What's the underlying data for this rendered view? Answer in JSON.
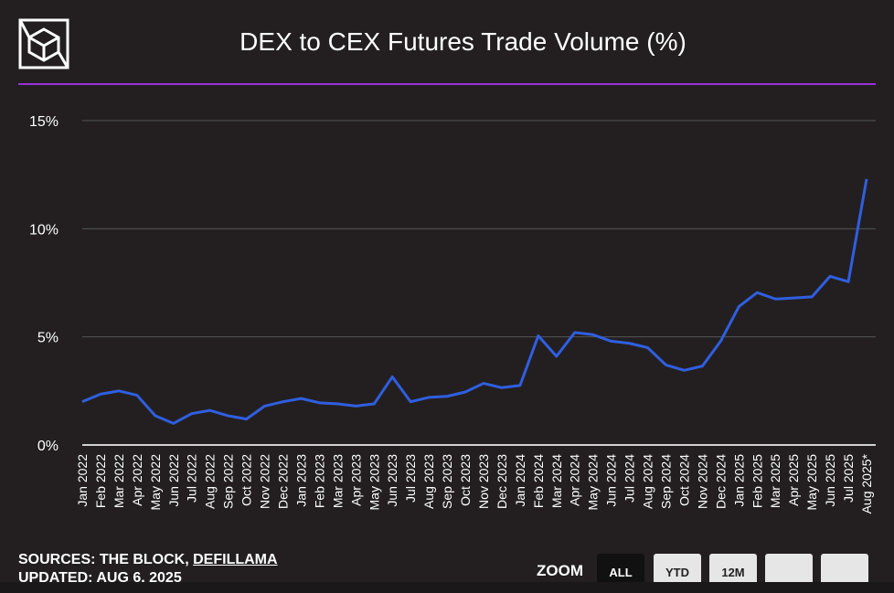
{
  "header": {
    "title": "DEX to CEX Futures Trade Volume (%)"
  },
  "logo": {
    "name": "The Block logo"
  },
  "footer": {
    "sources_prefix": "SOURCES: THE BLOCK, ",
    "sources_link": "DEFILLAMA",
    "updated": "UPDATED: AUG 6, 2025"
  },
  "zoom": {
    "label": "ZOOM",
    "buttons": [
      {
        "label": "ALL",
        "active": true
      },
      {
        "label": "YTD",
        "active": false
      },
      {
        "label": "12M",
        "active": false
      },
      {
        "label": "",
        "active": false
      },
      {
        "label": "",
        "active": false
      }
    ]
  },
  "colors": {
    "line": "#2f5fe0",
    "accent": "#9b30d9",
    "background": "#231f20",
    "grid": "#555555"
  },
  "chart_data": {
    "type": "line",
    "title": "DEX to CEX Futures Trade Volume (%)",
    "xlabel": "",
    "ylabel": "",
    "ylim": [
      0,
      15
    ],
    "yticks": [
      0,
      5,
      10,
      15
    ],
    "ytick_labels": [
      "0%",
      "5%",
      "10%",
      "15%"
    ],
    "grid": true,
    "categories": [
      "Jan 2022",
      "Feb 2022",
      "Mar 2022",
      "Apr 2022",
      "May 2022",
      "Jun 2022",
      "Jul 2022",
      "Aug 2022",
      "Sep 2022",
      "Oct 2022",
      "Nov 2022",
      "Dec 2022",
      "Jan 2023",
      "Feb 2023",
      "Mar 2023",
      "Apr 2023",
      "May 2023",
      "Jun 2023",
      "Jul 2023",
      "Aug 2023",
      "Sep 2023",
      "Oct 2023",
      "Nov 2023",
      "Dec 2023",
      "Jan 2024",
      "Feb 2024",
      "Mar 2024",
      "Apr 2024",
      "May 2024",
      "Jun 2024",
      "Jul 2024",
      "Aug 2024",
      "Sep 2024",
      "Oct 2024",
      "Nov 2024",
      "Dec 2024",
      "Jan 2025",
      "Feb 2025",
      "Mar 2025",
      "Apr 2025",
      "May 2025",
      "Jun 2025",
      "Jul 2025",
      "Aug 2025*"
    ],
    "series": [
      {
        "name": "DEX to CEX Futures Trade Volume (%)",
        "values": [
          2.0,
          2.35,
          2.5,
          2.3,
          1.35,
          1.0,
          1.45,
          1.6,
          1.35,
          1.2,
          1.8,
          2.0,
          2.15,
          1.95,
          1.9,
          1.8,
          1.9,
          3.15,
          2.0,
          2.2,
          2.25,
          2.45,
          2.85,
          2.65,
          2.75,
          5.05,
          4.1,
          5.2,
          5.1,
          4.8,
          4.7,
          4.5,
          3.7,
          3.45,
          3.65,
          4.8,
          6.4,
          7.05,
          6.75,
          6.8,
          6.85,
          7.8,
          7.55,
          12.3
        ]
      }
    ]
  }
}
